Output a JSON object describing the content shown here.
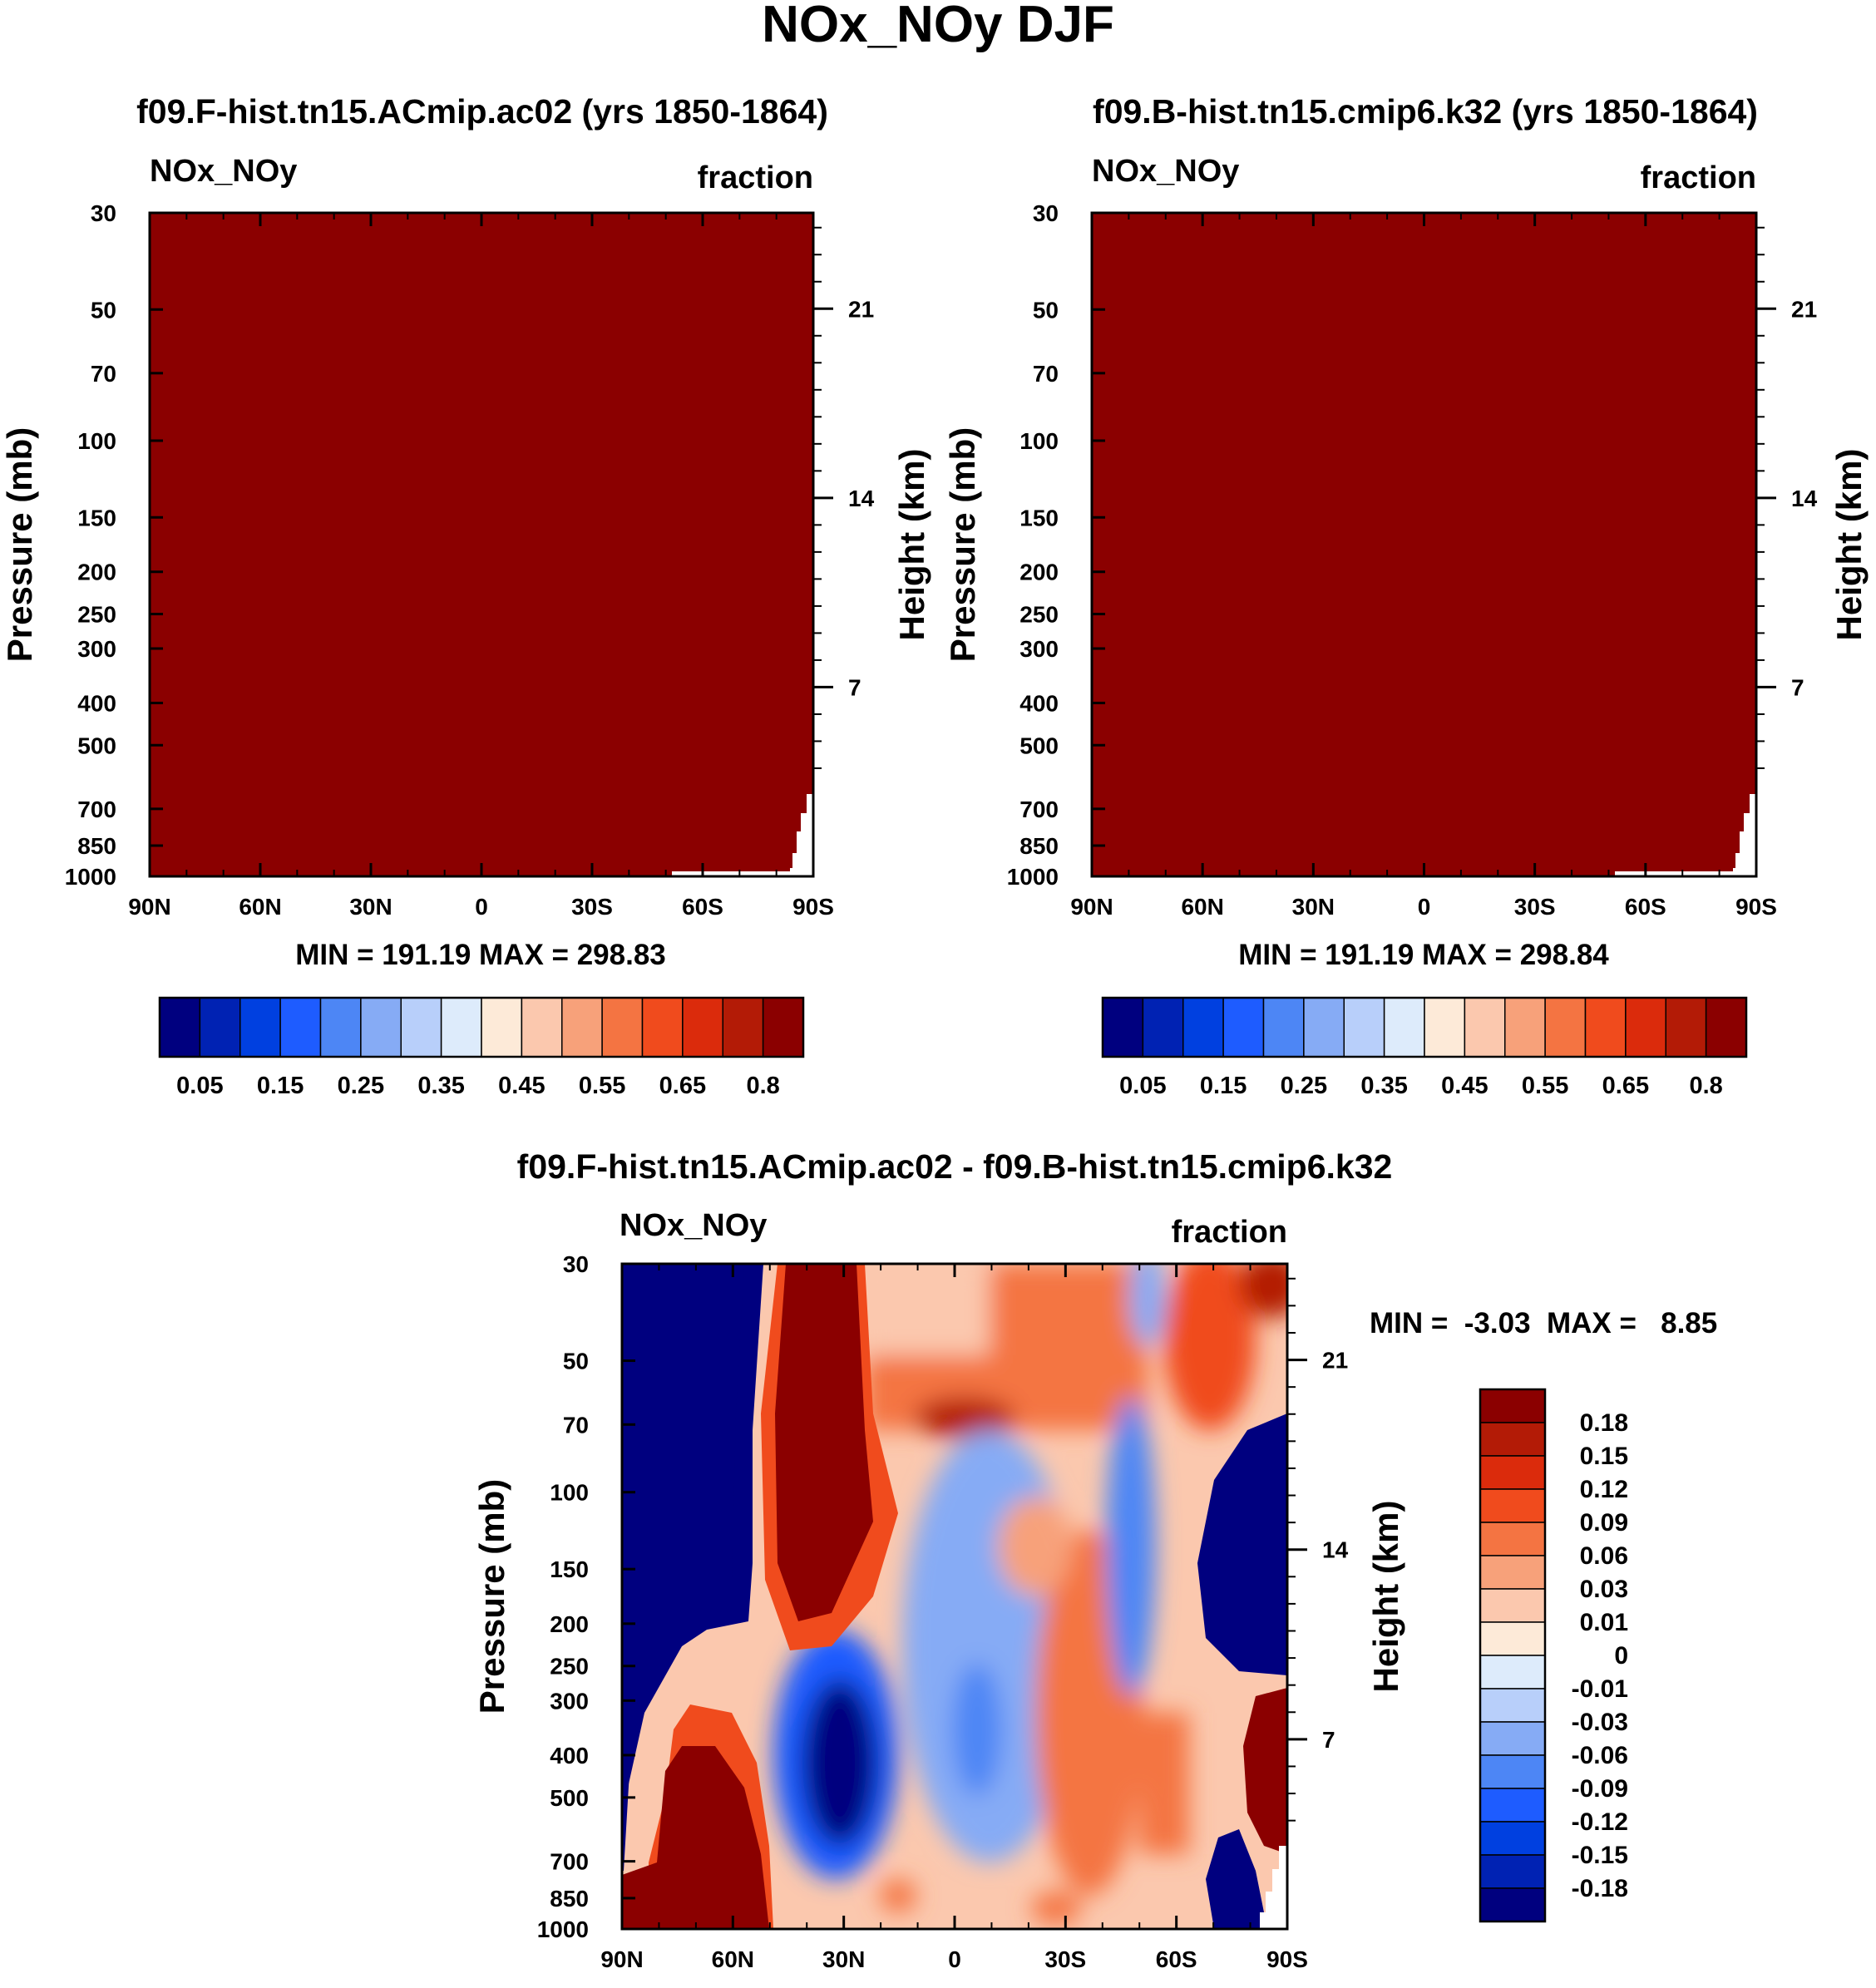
{
  "title": "NOx_NOy DJF",
  "chart_data": [
    {
      "type": "heatmap",
      "title": "f09.F-hist.tn15.ACmip.ac02 (yrs 1850-1864)",
      "left_label": "NOx_NOy",
      "right_label": "fraction",
      "ylabel": "Pressure (mb)",
      "y2label": "Height (km)",
      "xticks": [
        "90N",
        "60N",
        "30N",
        "0",
        "30S",
        "60S",
        "90S"
      ],
      "yticks": [
        "30",
        "50",
        "70",
        "100",
        "150",
        "200",
        "250",
        "300",
        "400",
        "500",
        "700",
        "850",
        "1000"
      ],
      "y2ticks": [
        "21",
        "14",
        "7"
      ],
      "fill_level": 0.8,
      "stats": "MIN = 191.19  MAX = 298.83",
      "colorbar_labels": [
        "0.05",
        "0.15",
        "0.25",
        "0.35",
        "0.45",
        "0.55",
        "0.65",
        "0.8"
      ]
    },
    {
      "type": "heatmap",
      "title": "f09.B-hist.tn15.cmip6.k32 (yrs 1850-1864)",
      "left_label": "NOx_NOy",
      "right_label": "fraction",
      "ylabel": "Pressure (mb)",
      "y2label": "Height (km)",
      "xticks": [
        "90N",
        "60N",
        "30N",
        "0",
        "30S",
        "60S",
        "90S"
      ],
      "yticks": [
        "30",
        "50",
        "70",
        "100",
        "150",
        "200",
        "250",
        "300",
        "400",
        "500",
        "700",
        "850",
        "1000"
      ],
      "y2ticks": [
        "21",
        "14",
        "7"
      ],
      "fill_level": 0.8,
      "stats": "MIN = 191.19  MAX = 298.84",
      "colorbar_labels": [
        "0.05",
        "0.15",
        "0.25",
        "0.35",
        "0.45",
        "0.55",
        "0.65",
        "0.8"
      ]
    },
    {
      "type": "heatmap",
      "title": "f09.F-hist.tn15.ACmip.ac02 - f09.B-hist.tn15.cmip6.k32",
      "left_label": "NOx_NOy",
      "right_label": "fraction",
      "ylabel": "Pressure (mb)",
      "y2label": "Height (km)",
      "xticks": [
        "90N",
        "60N",
        "30N",
        "0",
        "30S",
        "60S",
        "90S"
      ],
      "yticks": [
        "30",
        "50",
        "70",
        "100",
        "150",
        "200",
        "250",
        "300",
        "400",
        "500",
        "700",
        "850",
        "1000"
      ],
      "y2ticks": [
        "21",
        "14",
        "7"
      ],
      "stats": "MIN =  -3.03  MAX =   8.85",
      "colorbar_labels": [
        "0.18",
        "0.15",
        "0.12",
        "0.09",
        "0.06",
        "0.03",
        "0.01",
        "0",
        "-0.01",
        "-0.03",
        "-0.06",
        "-0.09",
        "-0.12",
        "-0.15",
        "-0.18"
      ]
    }
  ],
  "colors": {
    "abs_scale": [
      "#00007F",
      "#0022B3",
      "#0040E0",
      "#1E5CFF",
      "#4D86F5",
      "#86ABF5",
      "#B8CFFA",
      "#DDEBFB",
      "#FDEAD8",
      "#FBC8AE",
      "#F7A17A",
      "#F47442",
      "#F04B1D",
      "#DB2B0C",
      "#B31B06",
      "#8B0000"
    ],
    "diff_scale": [
      "#8B0000",
      "#B31B06",
      "#DB2B0C",
      "#F04B1D",
      "#F47442",
      "#F7A17A",
      "#FBC8AE",
      "#FDEAD8",
      "#DDEBFB",
      "#B8CFFA",
      "#86ABF5",
      "#4D86F5",
      "#1E5CFF",
      "#0040E0",
      "#0022B3",
      "#00007F"
    ]
  }
}
